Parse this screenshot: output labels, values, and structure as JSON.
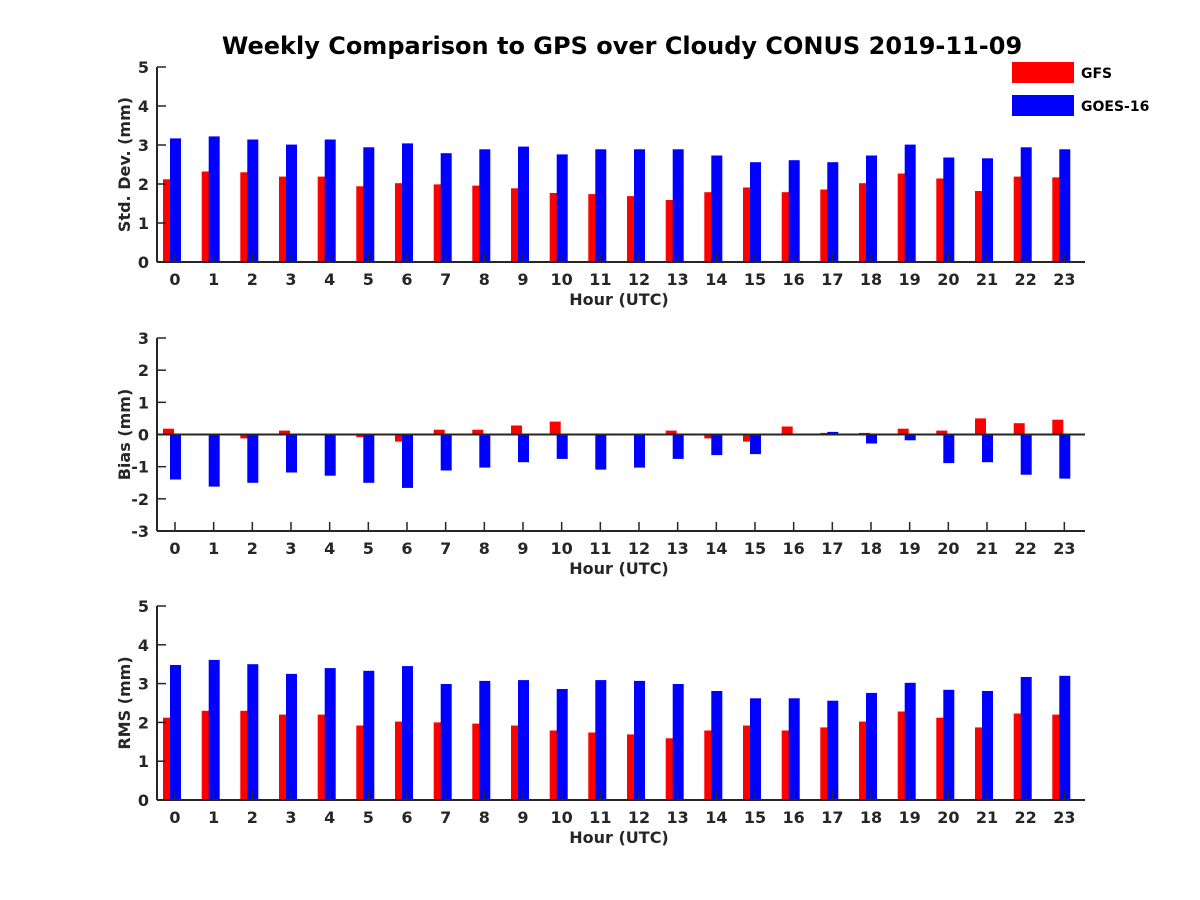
{
  "colors": {
    "GFS": "#ff0000",
    "GOES-16": "#0000ff",
    "axis": "#262626"
  },
  "chart_data": {
    "title": "Weekly Comparison to GPS over Cloudy CONUS 2019-11-09",
    "legend": {
      "position": "top-right",
      "entries": [
        "GFS",
        "GOES-16"
      ]
    },
    "panels": [
      {
        "type": "bar",
        "ylabel": "Std. Dev. (mm)",
        "xlabel": "Hour (UTC)",
        "ylim": [
          0,
          5
        ],
        "yticks": [
          "0",
          "1",
          "2",
          "3",
          "4",
          "5"
        ],
        "categories": [
          "0",
          "1",
          "2",
          "3",
          "4",
          "5",
          "6",
          "7",
          "8",
          "9",
          "10",
          "11",
          "12",
          "13",
          "14",
          "15",
          "16",
          "17",
          "18",
          "19",
          "20",
          "21",
          "22",
          "23"
        ],
        "series": [
          {
            "name": "GFS",
            "values": [
              2.12,
              2.32,
              2.3,
              2.19,
              2.19,
              1.94,
              2.02,
              1.99,
              1.96,
              1.89,
              1.77,
              1.74,
              1.69,
              1.59,
              1.79,
              1.91,
              1.79,
              1.86,
              2.02,
              2.27,
              2.14,
              1.82,
              2.19,
              2.17
            ]
          },
          {
            "name": "GOES-16",
            "values": [
              3.17,
              3.22,
              3.14,
              3.01,
              3.14,
              2.94,
              3.04,
              2.79,
              2.89,
              2.96,
              2.76,
              2.89,
              2.89,
              2.89,
              2.73,
              2.56,
              2.61,
              2.56,
              2.73,
              3.01,
              2.68,
              2.66,
              2.94,
              2.89
            ]
          }
        ]
      },
      {
        "type": "bar",
        "ylabel": "Bias (mm)",
        "xlabel": "Hour (UTC)",
        "ylim": [
          -3,
          3
        ],
        "yticks": [
          "-3",
          "-2",
          "-1",
          "0",
          "1",
          "2",
          "3"
        ],
        "categories": [
          "0",
          "1",
          "2",
          "3",
          "4",
          "5",
          "6",
          "7",
          "8",
          "9",
          "10",
          "11",
          "12",
          "13",
          "14",
          "15",
          "16",
          "17",
          "18",
          "19",
          "20",
          "21",
          "22",
          "23"
        ],
        "series": [
          {
            "name": "GFS",
            "values": [
              0.18,
              0.0,
              -0.12,
              0.12,
              0.02,
              -0.08,
              -0.22,
              0.15,
              0.15,
              0.28,
              0.4,
              -0.03,
              0.0,
              0.12,
              -0.12,
              -0.22,
              0.25,
              0.05,
              0.05,
              0.18,
              0.12,
              0.5,
              0.35,
              0.46
            ]
          },
          {
            "name": "GOES-16",
            "values": [
              -1.4,
              -1.62,
              -1.5,
              -1.18,
              -1.28,
              -1.5,
              -1.66,
              -1.12,
              -1.03,
              -0.86,
              -0.76,
              -1.09,
              -1.03,
              -0.76,
              -0.64,
              -0.61,
              0.02,
              0.08,
              -0.28,
              -0.18,
              -0.89,
              -0.86,
              -1.25,
              -1.37
            ]
          }
        ]
      },
      {
        "type": "bar",
        "ylabel": "RMS (mm)",
        "xlabel": "Hour (UTC)",
        "ylim": [
          0,
          5
        ],
        "yticks": [
          "0",
          "1",
          "2",
          "3",
          "4",
          "5"
        ],
        "categories": [
          "0",
          "1",
          "2",
          "3",
          "4",
          "5",
          "6",
          "7",
          "8",
          "9",
          "10",
          "11",
          "12",
          "13",
          "14",
          "15",
          "16",
          "17",
          "18",
          "19",
          "20",
          "21",
          "22",
          "23"
        ],
        "series": [
          {
            "name": "GFS",
            "values": [
              2.12,
              2.3,
              2.3,
              2.2,
              2.2,
              1.92,
              2.02,
              2.0,
              1.97,
              1.92,
              1.79,
              1.74,
              1.69,
              1.59,
              1.79,
              1.92,
              1.79,
              1.87,
              2.02,
              2.28,
              2.12,
              1.87,
              2.23,
              2.2
            ]
          },
          {
            "name": "GOES-16",
            "values": [
              3.48,
              3.61,
              3.5,
              3.25,
              3.4,
              3.33,
              3.45,
              2.99,
              3.07,
              3.09,
              2.86,
              3.09,
              3.07,
              2.99,
              2.81,
              2.62,
              2.62,
              2.56,
              2.76,
              3.02,
              2.84,
              2.81,
              3.17,
              3.2
            ]
          }
        ]
      }
    ]
  }
}
